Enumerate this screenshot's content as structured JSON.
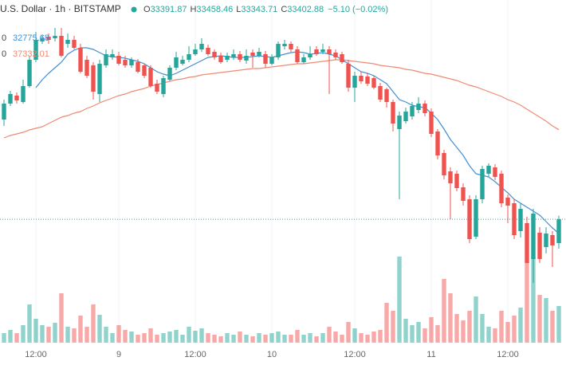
{
  "chart_data": {
    "type": "candlestick",
    "title": "U.S. Dollar · 1h · BITSTAMP",
    "ohlc_labels": [
      "O",
      "H",
      "L",
      "C"
    ],
    "ohlc_values": [
      33391.87,
      33458.46,
      33343.71,
      33402.88
    ],
    "change": "−5.10 (−0.02%)",
    "up_color": "#26a69a",
    "down_color": "#ef5350",
    "ylim": [
      27000,
      43030
    ],
    "categories": [
      null,
      null,
      null,
      null,
      null,
      "12:00",
      null,
      null,
      null,
      null,
      null,
      null,
      null,
      null,
      null,
      null,
      null,
      null,
      "9",
      null,
      null,
      null,
      null,
      null,
      null,
      null,
      null,
      null,
      null,
      null,
      "12:00",
      null,
      null,
      null,
      null,
      null,
      null,
      null,
      null,
      null,
      null,
      null,
      "10",
      null,
      null,
      null,
      null,
      null,
      null,
      null,
      null,
      null,
      null,
      null,
      null,
      "12:00",
      null,
      null,
      null,
      null,
      null,
      null,
      null,
      null,
      null,
      null,
      null,
      "11",
      null,
      null,
      null,
      null,
      null,
      null,
      null,
      null,
      null,
      null,
      null,
      "12:00",
      null,
      null,
      null,
      null,
      null,
      null,
      null,
      null
    ],
    "open": [
      37780,
      38480,
      38830,
      38550,
      39250,
      40405,
      41210,
      41420,
      41350,
      41455,
      41105,
      41280,
      40930,
      40405,
      40160,
      38900,
      40160,
      40510,
      40580,
      40405,
      40160,
      40300,
      40160,
      40055,
      39355,
      38900,
      39530,
      40055,
      40230,
      40405,
      40650,
      40860,
      40930,
      40755,
      40580,
      40405,
      40510,
      40650,
      40370,
      40720,
      40580,
      40650,
      40230,
      40510,
      41000,
      41105,
      40860,
      40300,
      40510,
      40860,
      40755,
      40860,
      40720,
      40650,
      40230,
      39180,
      39705,
      39670,
      39600,
      39250,
      39110,
      38550,
      37360,
      37710,
      37920,
      38200,
      38480,
      38130,
      37255,
      36310,
      35505,
      35400,
      34805,
      34280,
      32635,
      34280,
      35400,
      35680,
      35400,
      34350,
      34105,
      32880,
      33230,
      31655,
      32810,
      32180,
      32705,
      32355
    ],
    "high": [
      38655,
      39040,
      38970,
      39530,
      40580,
      41630,
      41490,
      41560,
      41805,
      41805,
      41560,
      41455,
      41105,
      40580,
      40300,
      40405,
      40860,
      40860,
      40755,
      40580,
      40510,
      40440,
      40230,
      40160,
      39530,
      39705,
      40160,
      40755,
      40580,
      41000,
      41105,
      41350,
      41070,
      40860,
      40720,
      40720,
      40860,
      40790,
      40860,
      40860,
      40930,
      40790,
      40650,
      41210,
      41280,
      41210,
      41000,
      40650,
      41000,
      41000,
      41105,
      41000,
      40860,
      40755,
      40405,
      39880,
      39880,
      39810,
      39705,
      39390,
      39180,
      38655,
      38130,
      38305,
      38550,
      38760,
      38620,
      38270,
      37360,
      36450,
      35680,
      35540,
      34980,
      34455,
      34455,
      35750,
      35855,
      35820,
      35540,
      34490,
      34280,
      34105,
      33510,
      33860,
      33055,
      33055,
      32880,
      33560
    ],
    "low": [
      37500,
      38375,
      38480,
      38480,
      39180,
      40300,
      41105,
      41105,
      41210,
      40510,
      40930,
      40860,
      39810,
      39600,
      38655,
      38550,
      40055,
      40405,
      40160,
      40055,
      40055,
      39810,
      39600,
      39180,
      38900,
      38760,
      39460,
      39950,
      40160,
      40300,
      40580,
      40755,
      40580,
      40405,
      40230,
      40300,
      40405,
      40300,
      40230,
      40055,
      40510,
      40055,
      40160,
      40405,
      40860,
      40755,
      40230,
      40230,
      40405,
      40580,
      40650,
      38900,
      40405,
      40230,
      39005,
      38550,
      39355,
      39250,
      39110,
      38550,
      38305,
      37255,
      34280,
      37605,
      37780,
      38060,
      37920,
      37010,
      36030,
      35155,
      33405,
      34630,
      34000,
      32355,
      32530,
      34105,
      35260,
      35120,
      33930,
      33230,
      32530,
      32600,
      31480,
      30605,
      31480,
      31900,
      31305,
      32110
    ],
    "close": [
      38480,
      38900,
      38620,
      39250,
      40405,
      41280,
      41350,
      41280,
      41455,
      40580,
      41280,
      40930,
      39880,
      39705,
      39005,
      40230,
      40650,
      40650,
      40230,
      40160,
      40405,
      39880,
      39705,
      39250,
      39005,
      39600,
      40055,
      40510,
      40405,
      40650,
      40860,
      41105,
      40650,
      40510,
      40300,
      40580,
      40650,
      40405,
      40580,
      40580,
      40755,
      40230,
      40510,
      41105,
      41105,
      40860,
      40300,
      40510,
      40650,
      40650,
      40860,
      40650,
      40510,
      40300,
      39180,
      39705,
      39460,
      39355,
      39180,
      38655,
      38550,
      37605,
      37955,
      38130,
      38375,
      38480,
      38060,
      37150,
      36205,
      35330,
      34980,
      34770,
      34210,
      32530,
      34280,
      35610,
      35750,
      35260,
      34105,
      34000,
      32705,
      33860,
      31480,
      33650,
      31655,
      32775,
      32250,
      33400
    ],
    "volume": [
      12,
      16,
      12,
      22,
      48,
      30,
      22,
      20,
      25,
      62,
      20,
      18,
      34,
      20,
      48,
      35,
      20,
      12,
      22,
      16,
      14,
      10,
      12,
      18,
      10,
      12,
      14,
      16,
      10,
      20,
      15,
      18,
      12,
      10,
      8,
      12,
      10,
      14,
      10,
      8,
      12,
      10,
      12,
      14,
      10,
      10,
      16,
      10,
      12,
      8,
      12,
      20,
      14,
      10,
      26,
      18,
      12,
      10,
      14,
      16,
      50,
      40,
      108,
      30,
      22,
      26,
      18,
      32,
      22,
      80,
      62,
      36,
      28,
      40,
      58,
      36,
      20,
      18,
      40,
      26,
      34,
      44,
      100,
      108,
      60,
      56,
      40,
      46
    ],
    "series": [
      {
        "name": "0",
        "color": "#3f8fd6",
        "values": [
          null,
          null,
          null,
          null,
          null,
          39180,
          39530,
          39810,
          40055,
          40300,
          40650,
          40825,
          40930,
          40930,
          40860,
          40720,
          40580,
          40545,
          40510,
          40475,
          40405,
          40335,
          40230,
          40055,
          39880,
          39775,
          39705,
          39810,
          39950,
          40090,
          40230,
          40370,
          40510,
          40545,
          40580,
          40545,
          40510,
          40510,
          40510,
          40545,
          40580,
          40545,
          40510,
          40580,
          40650,
          40720,
          40755,
          40720,
          40650,
          40685,
          40720,
          40650,
          40580,
          40405,
          40230,
          40055,
          39880,
          39810,
          39705,
          39530,
          39355,
          39005,
          38655,
          38550,
          38410,
          38340,
          38305,
          38060,
          37780,
          37360,
          36905,
          36555,
          36205,
          35750,
          35400,
          35330,
          35260,
          35050,
          34805,
          34560,
          34280,
          34105,
          33930,
          33755,
          33580,
          33300,
          33020,
          32775.68
        ]
      },
      {
        "name": "0",
        "color": "#ef8a73",
        "values": [
          36975,
          37080,
          37150,
          37220,
          37325,
          37395,
          37465,
          37605,
          37745,
          37885,
          37955,
          38060,
          38130,
          38270,
          38375,
          38515,
          38620,
          38725,
          38830,
          38900,
          39005,
          39075,
          39145,
          39250,
          39320,
          39390,
          39460,
          39530,
          39565,
          39635,
          39670,
          39740,
          39775,
          39810,
          39845,
          39880,
          39915,
          39950,
          39985,
          40020,
          40020,
          40055,
          40090,
          40125,
          40160,
          40195,
          40230,
          40230,
          40265,
          40300,
          40335,
          40370,
          40405,
          40405,
          40370,
          40335,
          40300,
          40265,
          40230,
          40160,
          40125,
          40090,
          40055,
          39985,
          39950,
          39880,
          39810,
          39775,
          39705,
          39635,
          39565,
          39495,
          39390,
          39285,
          39215,
          39110,
          39005,
          38900,
          38795,
          38655,
          38550,
          38410,
          38235,
          38060,
          37885,
          37710,
          37500,
          37332.01
        ]
      }
    ]
  }
}
